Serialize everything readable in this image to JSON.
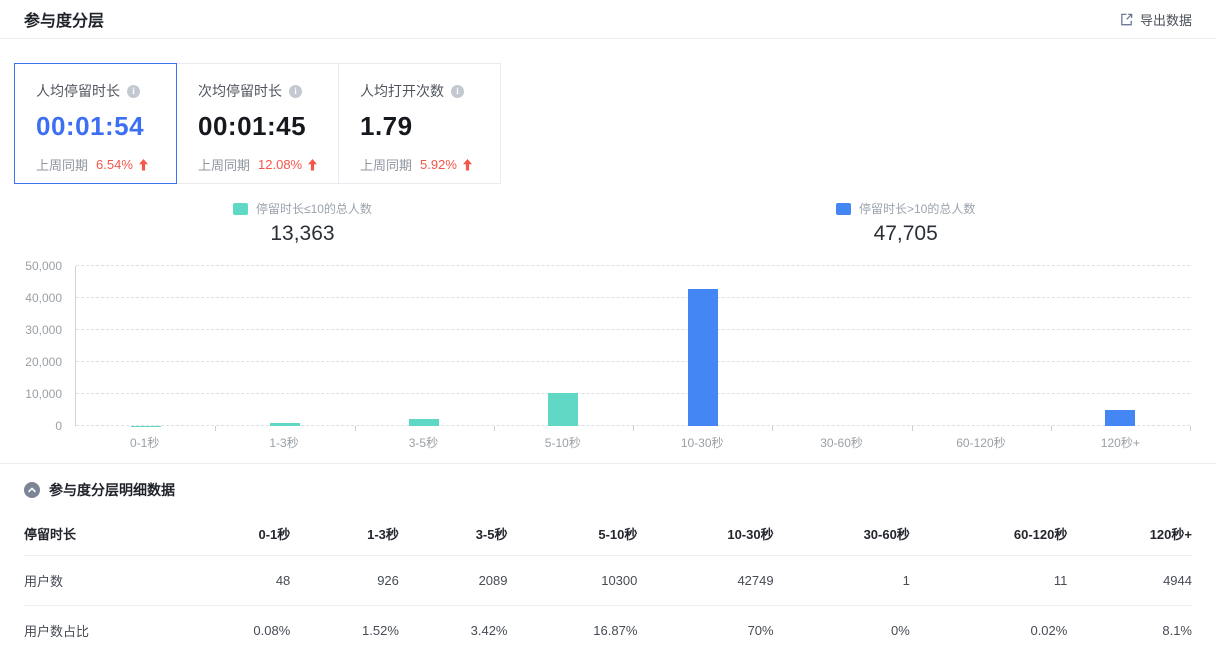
{
  "page": {
    "title": "参与度分层",
    "export_label": "导出数据"
  },
  "colors": {
    "accent_blue": "#3d6ff2",
    "trend_red": "#f5564a",
    "bar_teal": "#5fd8c6",
    "bar_blue": "#4486f4"
  },
  "stat_cards": [
    {
      "label": "人均停留时长",
      "value": "00:01:54",
      "compare_label": "上周同期",
      "compare_value": "6.54%",
      "trend": "up",
      "active": true
    },
    {
      "label": "次均停留时长",
      "value": "00:01:45",
      "compare_label": "上周同期",
      "compare_value": "12.08%",
      "trend": "up",
      "active": false
    },
    {
      "label": "人均打开次数",
      "value": "1.79",
      "compare_label": "上周同期",
      "compare_value": "5.92%",
      "trend": "up",
      "active": false
    }
  ],
  "chart_data": {
    "type": "bar",
    "title": "",
    "categories": [
      "0-1秒",
      "1-3秒",
      "3-5秒",
      "5-10秒",
      "10-30秒",
      "30-60秒",
      "60-120秒",
      "120秒+"
    ],
    "values": [
      48,
      926,
      2089,
      10300,
      42749,
      1,
      11,
      4944
    ],
    "bar_colors": [
      "#5fd8c6",
      "#5fd8c6",
      "#5fd8c6",
      "#5fd8c6",
      "#4486f4",
      "#4486f4",
      "#4486f4",
      "#4486f4"
    ],
    "xlabel": "",
    "ylabel": "",
    "ylim": [
      0,
      50000
    ],
    "y_ticks": [
      "0",
      "10,000",
      "20,000",
      "30,000",
      "40,000",
      "50,000"
    ],
    "grid": "dashed-horizontal",
    "legend_position": "top",
    "legend": [
      {
        "label": "停留时长≤10的总人数",
        "total": "13,363",
        "color": "#5fd8c6"
      },
      {
        "label": "停留时长>10的总人数",
        "total": "47,705",
        "color": "#4486f4"
      }
    ]
  },
  "detail_section": {
    "title": "参与度分层明细数据",
    "table": {
      "header": [
        "停留时长",
        "0-1秒",
        "1-3秒",
        "3-5秒",
        "5-10秒",
        "10-30秒",
        "30-60秒",
        "60-120秒",
        "120秒+"
      ],
      "rows": [
        {
          "label": "用户数",
          "values": [
            "48",
            "926",
            "2089",
            "10300",
            "42749",
            "1",
            "11",
            "4944"
          ]
        },
        {
          "label": "用户数占比",
          "values": [
            "0.08%",
            "1.52%",
            "3.42%",
            "16.87%",
            "70%",
            "0%",
            "0.02%",
            "8.1%"
          ]
        }
      ]
    }
  }
}
